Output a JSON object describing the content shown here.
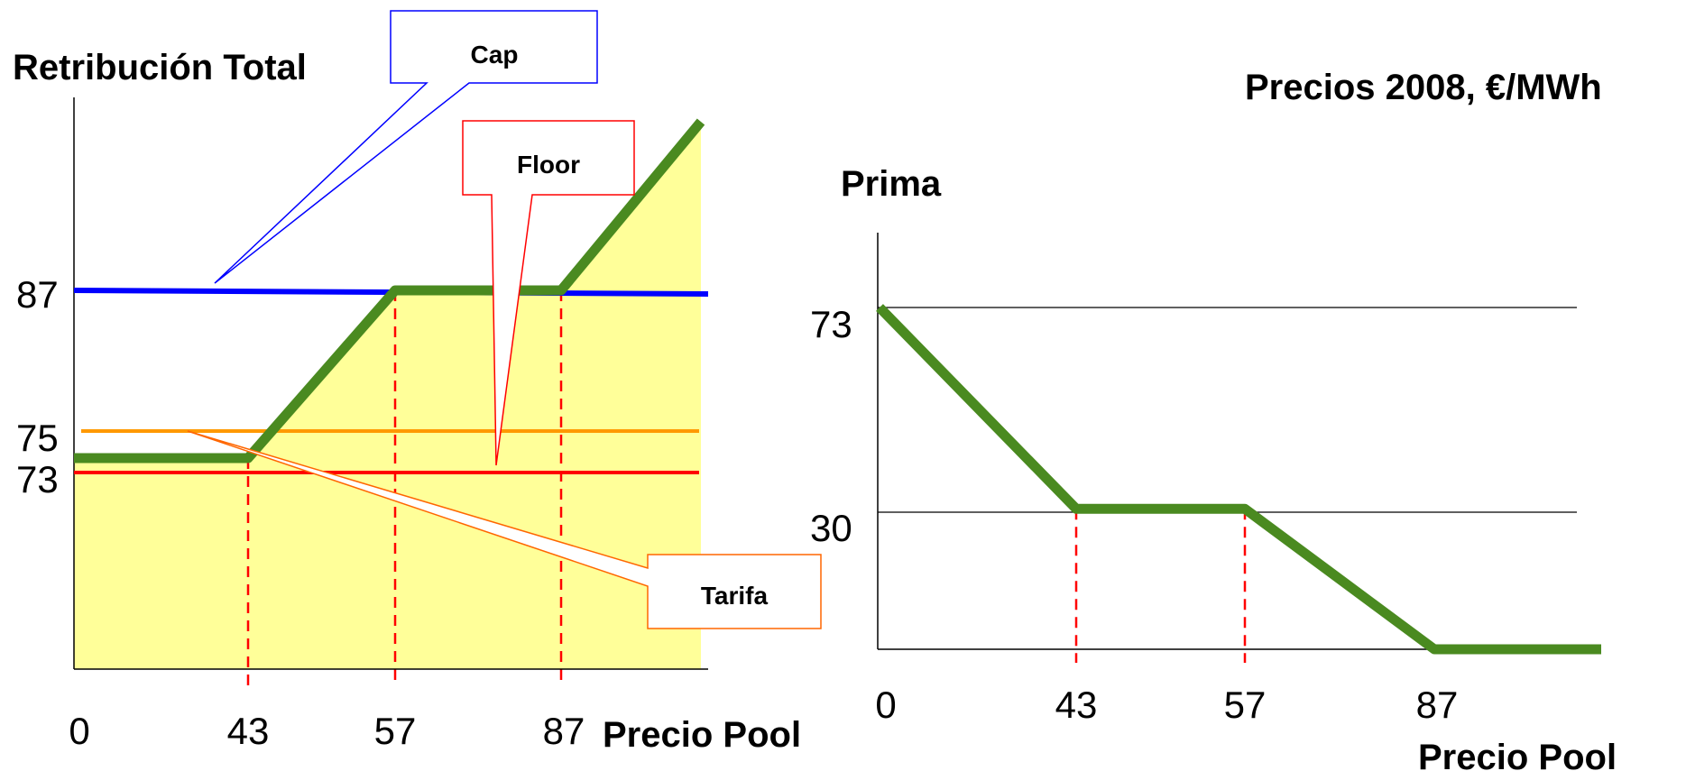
{
  "header": {
    "subtitle": "Precios 2008, €/MWh"
  },
  "colors": {
    "area": "#ffff99",
    "axis": "#000000",
    "cap": "#0000ff",
    "floor": "#ff0000",
    "tarifa": "#ff9900",
    "series": "#4a8a20",
    "dashed": "#ff0000",
    "callout_cap": "#0000ff",
    "callout_floor": "#ff0000",
    "callout_tarifa": "#ff6600"
  },
  "chart_data": [
    {
      "type": "line",
      "title": "",
      "ylabel": "Retribución Total",
      "xlabel": "Precio Pool",
      "x_ticks": [
        "0",
        "43",
        "57",
        "87"
      ],
      "y_ticks": [
        "73",
        "75",
        "87"
      ],
      "ylim": [
        62,
        100
      ],
      "grid": false,
      "filled_area": true,
      "series": [
        {
          "x": [
            0,
            43,
            57,
            87,
            104
          ],
          "values": [
            73.5,
            73.5,
            87,
            87,
            100
          ]
        }
      ],
      "reference_lines": [
        {
          "name": "Cap",
          "value": 87
        },
        {
          "name": "Floor",
          "value": 73
        },
        {
          "name": "Tarifa",
          "value": 75
        }
      ],
      "dashed_markers_x": [
        43,
        57,
        87
      ],
      "annotations": [
        "Cap",
        "Floor",
        "Tarifa"
      ]
    },
    {
      "type": "line",
      "title": "",
      "ylabel": "Prima",
      "xlabel": "Precio Pool",
      "x_ticks": [
        "0",
        "43",
        "57",
        "87"
      ],
      "y_ticks": [
        "30",
        "73"
      ],
      "ylim": [
        0,
        80
      ],
      "grid": true,
      "series": [
        {
          "x": [
            0,
            43,
            57,
            87,
            102
          ],
          "values": [
            73,
            30,
            30,
            0,
            0
          ]
        }
      ],
      "dashed_markers_x": [
        43,
        57
      ]
    }
  ]
}
